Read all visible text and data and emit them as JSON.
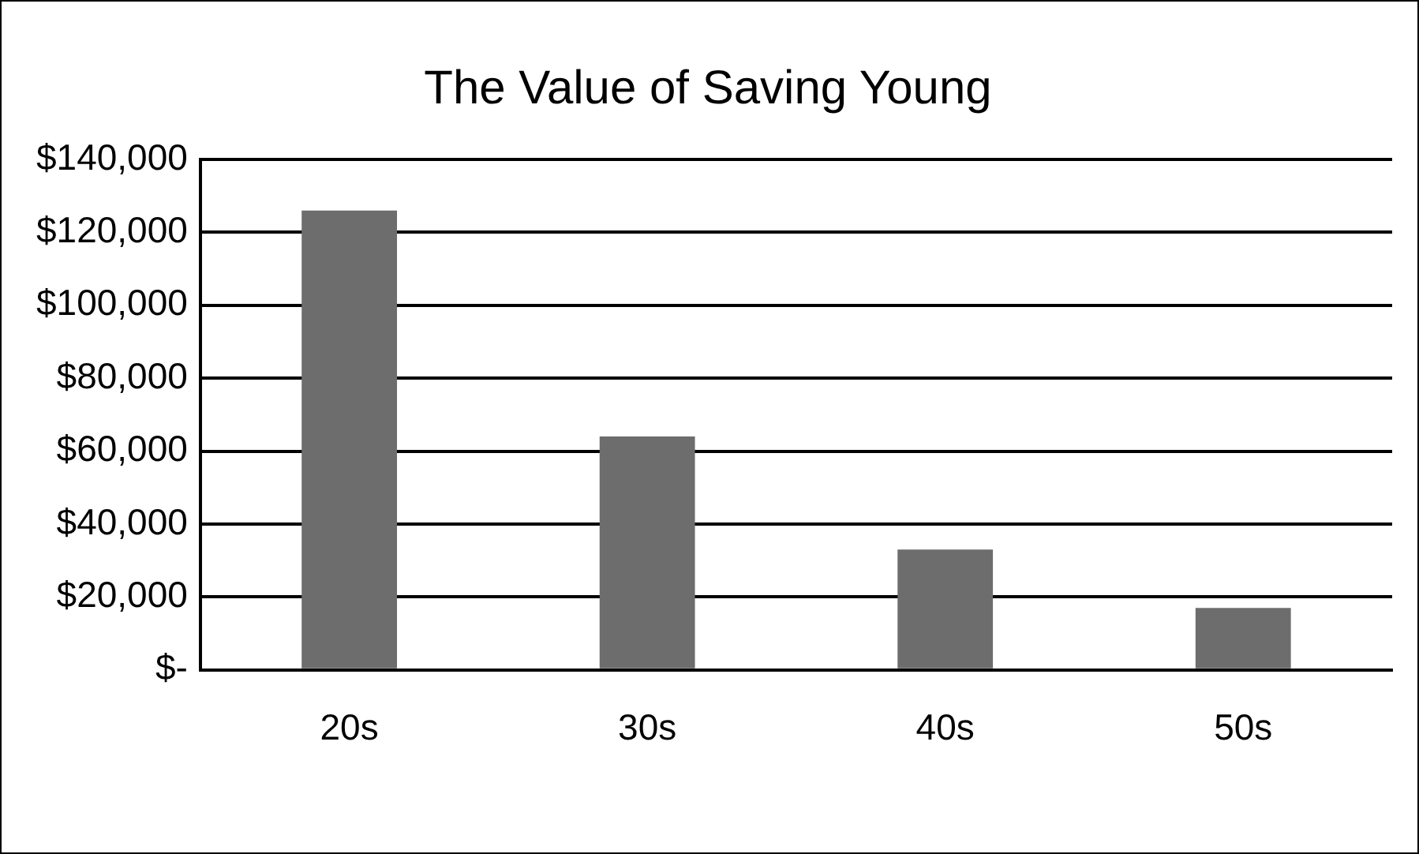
{
  "chart_data": {
    "type": "bar",
    "title": "The Value of Saving Young",
    "categories": [
      "20s",
      "30s",
      "40s",
      "50s"
    ],
    "values": [
      126000,
      64000,
      33000,
      17000
    ],
    "color": "#6d6d6d",
    "ylim": [
      0,
      140000
    ],
    "yticks": [
      {
        "value": 0,
        "label": "$-"
      },
      {
        "value": 20000,
        "label": "$20,000"
      },
      {
        "value": 40000,
        "label": "$40,000"
      },
      {
        "value": 60000,
        "label": "$60,000"
      },
      {
        "value": 80000,
        "label": "$80,000"
      },
      {
        "value": 100000,
        "label": "$100,000"
      },
      {
        "value": 120000,
        "label": "$120,000"
      },
      {
        "value": 140000,
        "label": "$140,000"
      }
    ],
    "grid": "y",
    "legend": false
  }
}
